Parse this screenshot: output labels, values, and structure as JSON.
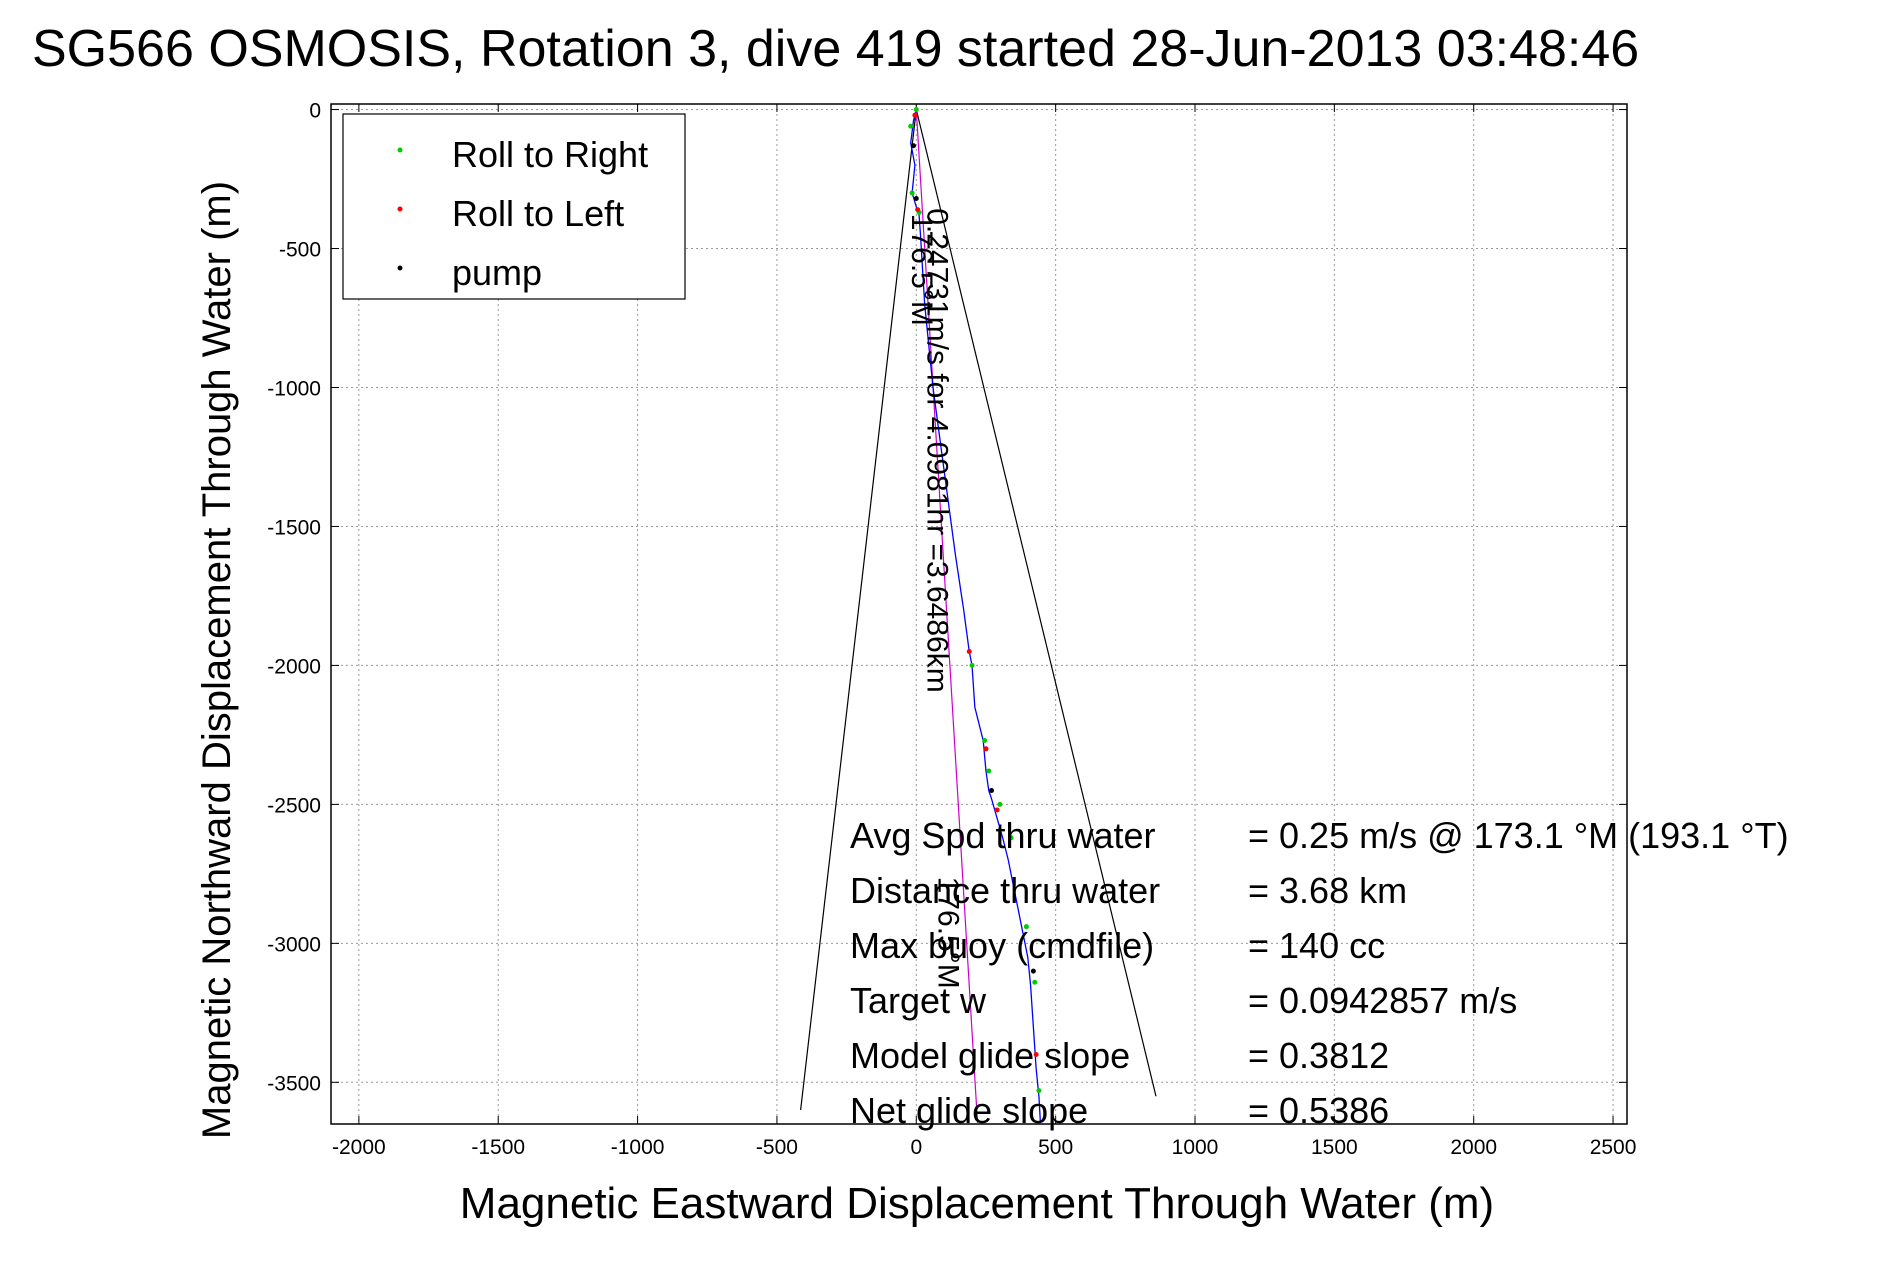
{
  "chart_data": {
    "type": "line",
    "title": "SG566 OSMOSIS, Rotation 3, dive 419 started 28-Jun-2013 03:48:46",
    "xlabel": "Magnetic Eastward Displacement Through Water (m)",
    "ylabel": "Magnetic Northward Displacement Through Water (m)",
    "xlim": [
      -2100,
      2550
    ],
    "ylim": [
      -3650,
      20
    ],
    "x_ticks": [
      -2000,
      -1500,
      -1000,
      -500,
      0,
      500,
      1000,
      1500,
      2000,
      2500
    ],
    "y_ticks": [
      0,
      -500,
      -1000,
      -1500,
      -2000,
      -2500,
      -3000,
      -3500
    ],
    "grid": true,
    "legend_placement": "top-left",
    "legend": [
      {
        "label": "Roll to Right",
        "color": "#00cc00",
        "marker": "dot"
      },
      {
        "label": "Roll to Left",
        "color": "#ff0000",
        "marker": "dot"
      },
      {
        "label": "pump",
        "color": "#000000",
        "marker": "dot"
      }
    ],
    "track": {
      "color": "#0000ff",
      "x": [
        0,
        -10,
        -20,
        -5,
        -15,
        0,
        10,
        15,
        30,
        60,
        100,
        140,
        170,
        190,
        200,
        210,
        240,
        250,
        260,
        270,
        290,
        310,
        330,
        350,
        380,
        400,
        410,
        420,
        430,
        440,
        445
      ],
      "y": [
        0,
        -40,
        -120,
        -200,
        -300,
        -350,
        -380,
        -450,
        -700,
        -1000,
        -1300,
        -1600,
        -1800,
        -1950,
        -2000,
        -2150,
        -2270,
        -2380,
        -2450,
        -2480,
        -2550,
        -2620,
        -2700,
        -2800,
        -2950,
        -3050,
        -3150,
        -3300,
        -3450,
        -3550,
        -3640
      ]
    },
    "roll_right_points": {
      "color": "#00cc00",
      "x": [
        0,
        -20,
        -15,
        10,
        200,
        245,
        260,
        300,
        340,
        395,
        425,
        440
      ],
      "y": [
        0,
        -60,
        -300,
        -370,
        -2000,
        -2270,
        -2380,
        -2500,
        -2620,
        -2940,
        -3140,
        -3530
      ]
    },
    "roll_left_points": {
      "color": "#ff0000",
      "x": [
        -5,
        5,
        190,
        250,
        290,
        430
      ],
      "y": [
        -20,
        -360,
        -1950,
        -2300,
        -2520,
        -3400
      ]
    },
    "pump_points": {
      "color": "#000000",
      "x": [
        -10,
        0,
        270,
        420
      ],
      "y": [
        -130,
        -320,
        -2450,
        -3100
      ]
    },
    "course_line": {
      "color": "#cc00cc",
      "x": [
        0,
        220
      ],
      "y": [
        0,
        -3650
      ]
    },
    "cone_lines": {
      "color": "#000000",
      "left": {
        "x": [
          0,
          -415
        ],
        "y": [
          0,
          -3600
        ]
      },
      "right": {
        "x": [
          0,
          860
        ],
        "y": [
          0,
          -3550
        ]
      }
    },
    "annotations": [
      {
        "text": "176.5°M",
        "x": -15,
        "y": -375,
        "rotation": 90
      },
      {
        "text": "0.24731m/s for 4.0981hr =3.6486km",
        "x": 40,
        "y": -355,
        "rotation": 90
      },
      {
        "text": "176.5°M",
        "x": 80,
        "y": -2760,
        "rotation": 90
      }
    ],
    "stats": [
      {
        "label": "Avg Spd thru water",
        "value": "=  0.25 m/s @ 173.1 °M (193.1 °T)"
      },
      {
        "label": "Distance thru water",
        "value": "=  3.68 km"
      },
      {
        "label": "Max buoy (cmdfile)",
        "value": "= 140 cc"
      },
      {
        "label": "Target w",
        "value": "= 0.0942857 m/s"
      },
      {
        "label": "Model glide slope",
        "value": "= 0.3812"
      },
      {
        "label": "Net glide slope",
        "value": "= 0.5386"
      }
    ]
  }
}
